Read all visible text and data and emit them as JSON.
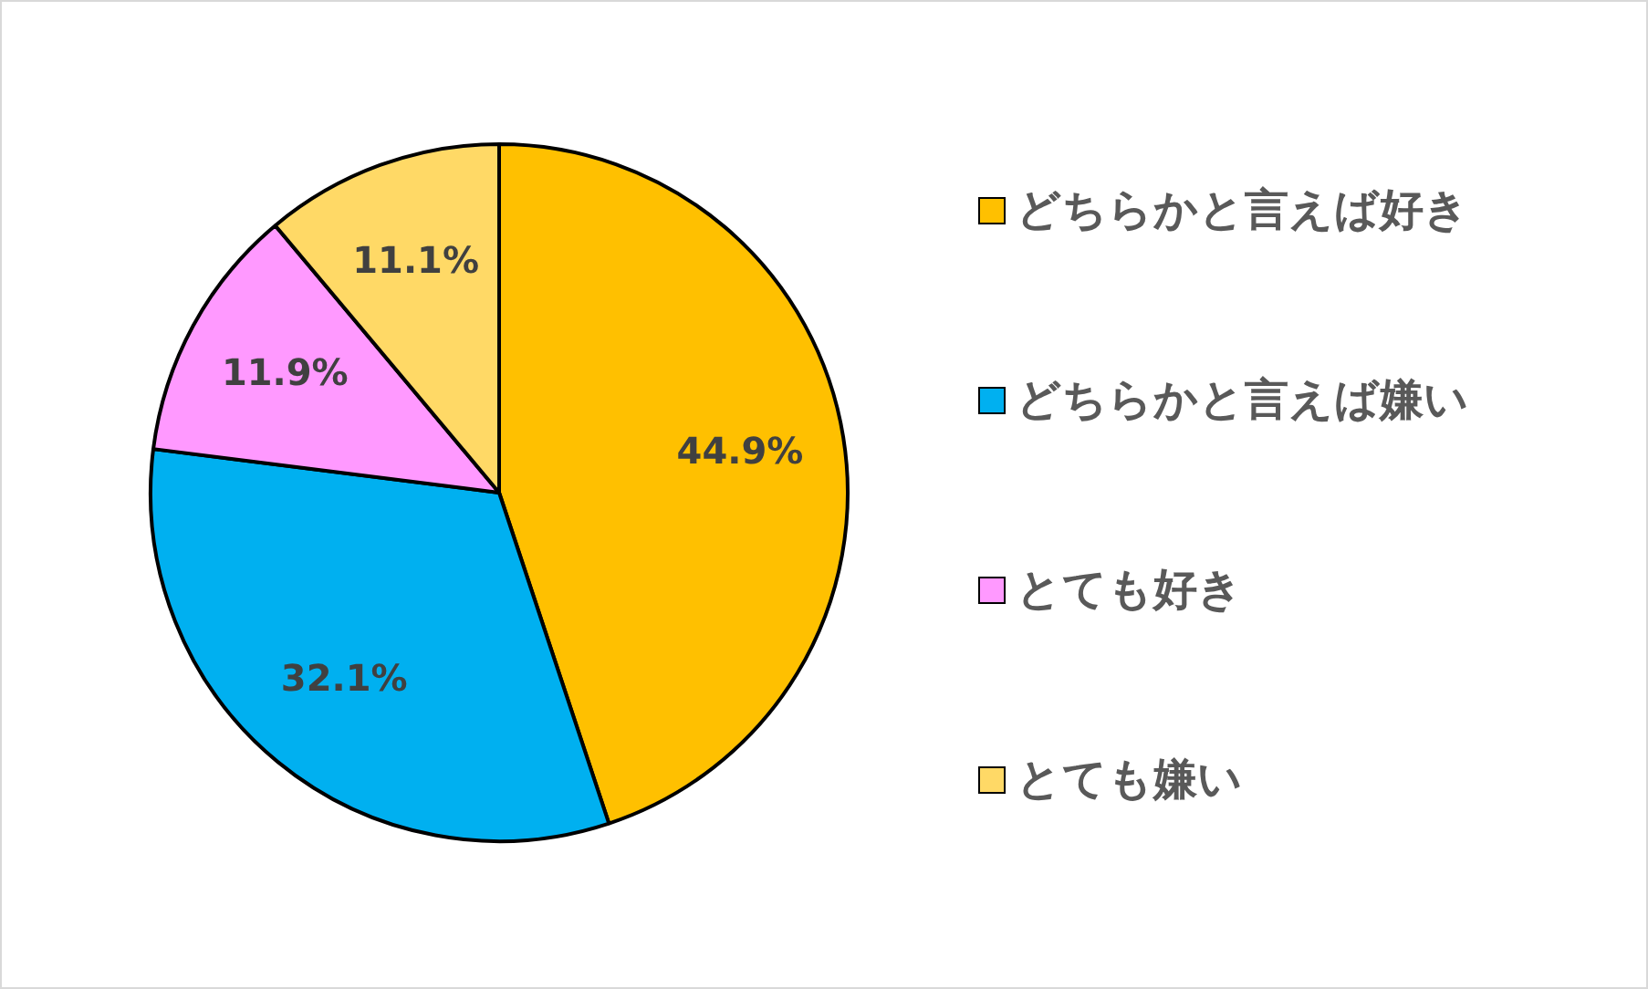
{
  "chart_data": {
    "type": "pie",
    "categories": [
      "どちらかと言えば好き",
      "どちらかと言えば嫌い",
      "とても好き",
      "とても嫌い"
    ],
    "values": [
      44.9,
      32.1,
      11.9,
      11.1
    ],
    "colors": [
      "#ffc000",
      "#00b0f0",
      "#ff99ff",
      "#ffd966"
    ],
    "value_labels": [
      "44.9%",
      "32.1%",
      "11.9%",
      "11.1%"
    ],
    "legend": "right"
  }
}
